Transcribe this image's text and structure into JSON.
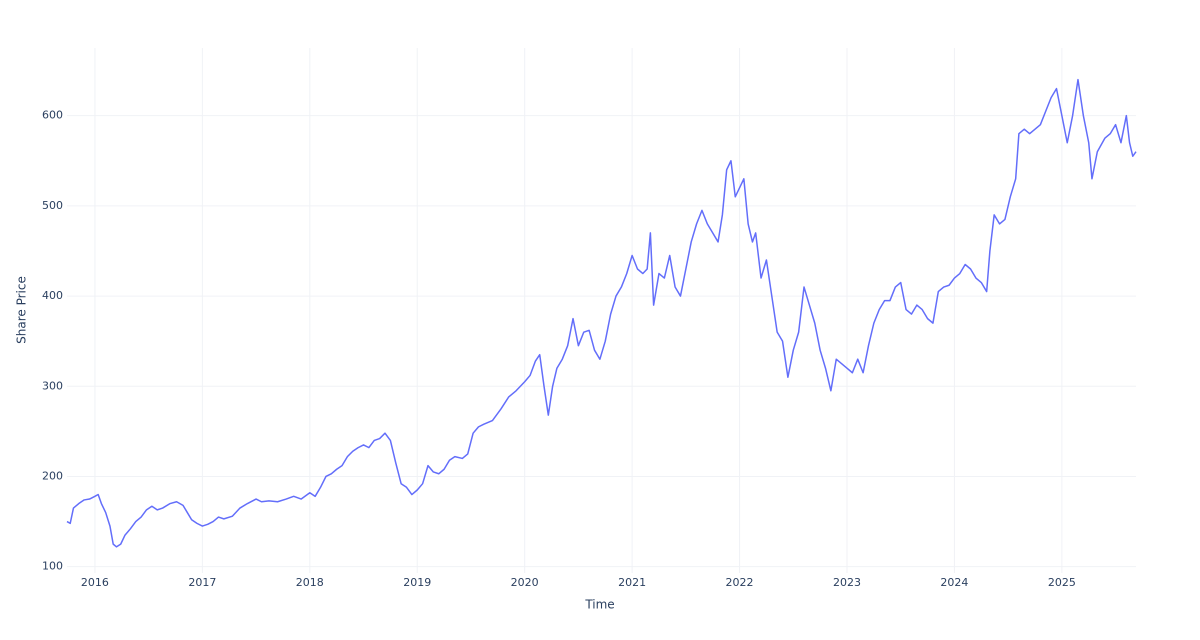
{
  "chart_data": {
    "type": "line",
    "x_label": "Time",
    "y_label": "Share Price",
    "x": [
      2015.74,
      2015.77,
      2015.8,
      2015.85,
      2015.9,
      2015.95,
      2016.0,
      2016.03,
      2016.06,
      2016.1,
      2016.14,
      2016.17,
      2016.2,
      2016.24,
      2016.28,
      2016.33,
      2016.38,
      2016.43,
      2016.48,
      2016.53,
      2016.58,
      2016.63,
      2016.7,
      2016.76,
      2016.82,
      2016.86,
      2016.9,
      2016.95,
      2017.0,
      2017.05,
      2017.1,
      2017.15,
      2017.2,
      2017.28,
      2017.35,
      2017.42,
      2017.5,
      2017.55,
      2017.62,
      2017.7,
      2017.78,
      2017.85,
      2017.92,
      2018.0,
      2018.05,
      2018.1,
      2018.15,
      2018.2,
      2018.25,
      2018.3,
      2018.35,
      2018.4,
      2018.45,
      2018.5,
      2018.55,
      2018.6,
      2018.65,
      2018.7,
      2018.75,
      2018.8,
      2018.85,
      2018.9,
      2018.95,
      2019.0,
      2019.05,
      2019.1,
      2019.15,
      2019.2,
      2019.25,
      2019.3,
      2019.35,
      2019.42,
      2019.47,
      2019.52,
      2019.57,
      2019.62,
      2019.7,
      2019.78,
      2019.85,
      2019.92,
      2020.0,
      2020.05,
      2020.1,
      2020.14,
      2020.18,
      2020.22,
      2020.26,
      2020.3,
      2020.35,
      2020.4,
      2020.45,
      2020.5,
      2020.55,
      2020.6,
      2020.65,
      2020.7,
      2020.75,
      2020.8,
      2020.85,
      2020.9,
      2020.95,
      2021.0,
      2021.05,
      2021.1,
      2021.14,
      2021.17,
      2021.2,
      2021.25,
      2021.3,
      2021.35,
      2021.4,
      2021.45,
      2021.5,
      2021.55,
      2021.6,
      2021.65,
      2021.7,
      2021.75,
      2021.8,
      2021.84,
      2021.88,
      2021.92,
      2021.96,
      2022.0,
      2022.04,
      2022.08,
      2022.12,
      2022.15,
      2022.2,
      2022.25,
      2022.3,
      2022.35,
      2022.4,
      2022.45,
      2022.5,
      2022.55,
      2022.6,
      2022.65,
      2022.7,
      2022.75,
      2022.8,
      2022.85,
      2022.9,
      2022.95,
      2023.0,
      2023.05,
      2023.1,
      2023.15,
      2023.2,
      2023.25,
      2023.3,
      2023.35,
      2023.4,
      2023.45,
      2023.5,
      2023.55,
      2023.6,
      2023.65,
      2023.7,
      2023.75,
      2023.8,
      2023.85,
      2023.9,
      2023.95,
      2024.0,
      2024.05,
      2024.1,
      2024.15,
      2024.2,
      2024.25,
      2024.3,
      2024.33,
      2024.37,
      2024.42,
      2024.47,
      2024.52,
      2024.57,
      2024.6,
      2024.65,
      2024.7,
      2024.75,
      2024.8,
      2024.85,
      2024.9,
      2024.95,
      2025.0,
      2025.05,
      2025.1,
      2025.15,
      2025.2,
      2025.25,
      2025.28,
      2025.33,
      2025.4,
      2025.45,
      2025.5,
      2025.55,
      2025.6,
      2025.63,
      2025.66,
      2025.69
    ],
    "series": [
      {
        "name": "Share Price",
        "color": "#636efa",
        "values": [
          150,
          148,
          165,
          170,
          174,
          175,
          178,
          180,
          170,
          160,
          145,
          125,
          122,
          125,
          135,
          142,
          150,
          155,
          163,
          167,
          163,
          165,
          170,
          172,
          168,
          160,
          152,
          148,
          145,
          147,
          150,
          155,
          153,
          156,
          165,
          170,
          175,
          172,
          173,
          172,
          175,
          178,
          175,
          182,
          178,
          188,
          200,
          203,
          208,
          212,
          222,
          228,
          232,
          235,
          232,
          240,
          242,
          248,
          240,
          215,
          192,
          188,
          180,
          185,
          192,
          212,
          205,
          203,
          208,
          218,
          222,
          220,
          225,
          248,
          255,
          258,
          262,
          275,
          288,
          295,
          305,
          312,
          328,
          335,
          300,
          268,
          300,
          320,
          330,
          345,
          375,
          345,
          360,
          362,
          340,
          330,
          350,
          380,
          400,
          410,
          425,
          445,
          430,
          425,
          430,
          470,
          390,
          425,
          420,
          445,
          410,
          400,
          430,
          460,
          480,
          495,
          480,
          470,
          460,
          490,
          540,
          550,
          510,
          520,
          530,
          480,
          460,
          470,
          420,
          440,
          400,
          360,
          350,
          310,
          340,
          360,
          410,
          390,
          370,
          340,
          320,
          295,
          330,
          325,
          320,
          315,
          330,
          315,
          345,
          370,
          385,
          395,
          395,
          410,
          415,
          385,
          380,
          390,
          385,
          375,
          370,
          405,
          410,
          412,
          420,
          425,
          435,
          430,
          420,
          415,
          405,
          450,
          490,
          480,
          485,
          510,
          530,
          580,
          585,
          580,
          585,
          590,
          605,
          620,
          630,
          600,
          570,
          600,
          640,
          600,
          570,
          530,
          560,
          575,
          580,
          590,
          570,
          600,
          570,
          555,
          560
        ]
      }
    ],
    "xlim": [
      2015.74,
      2025.69
    ],
    "xticks": [
      2016,
      2017,
      2018,
      2019,
      2020,
      2021,
      2022,
      2023,
      2024,
      2025
    ],
    "ylim": [
      93,
      675
    ],
    "yticks": [
      100,
      200,
      300,
      400,
      500,
      600
    ],
    "grid": true
  }
}
